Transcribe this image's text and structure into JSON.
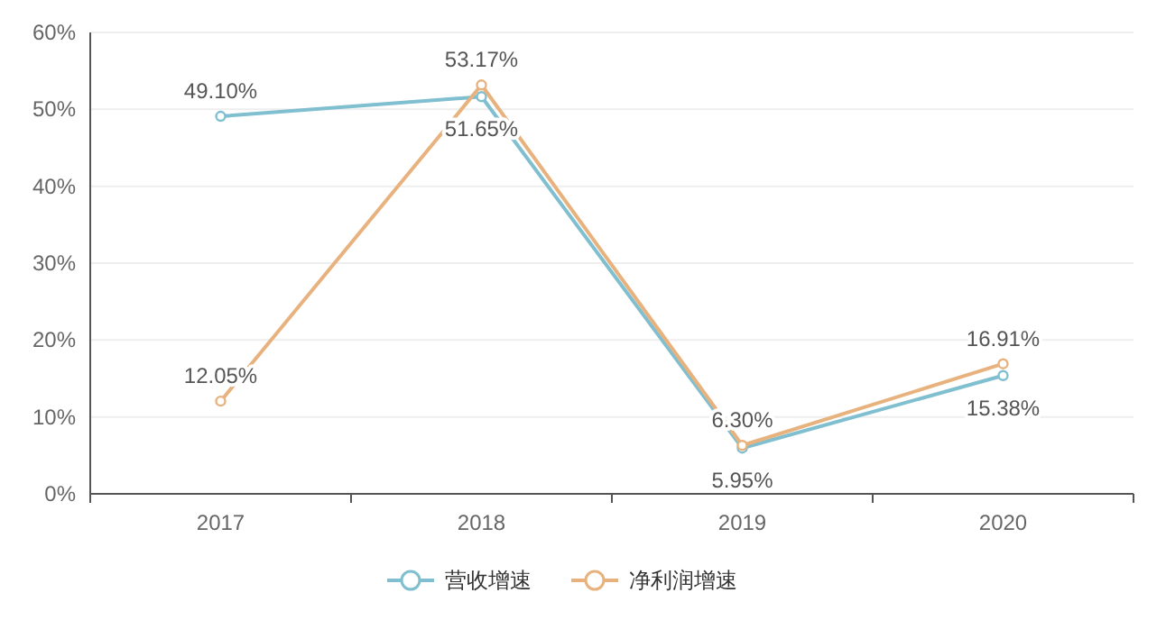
{
  "chart_data": {
    "type": "line",
    "categories": [
      "2017",
      "2018",
      "2019",
      "2020"
    ],
    "series": [
      {
        "name": "营收增速",
        "color": "#7fbfd0",
        "values": [
          49.1,
          51.65,
          5.95,
          15.38
        ],
        "value_labels": [
          "49.10%",
          "51.65%",
          "5.95%",
          "15.38%"
        ]
      },
      {
        "name": "净利润增速",
        "color": "#e8b27e",
        "values": [
          12.05,
          53.17,
          6.3,
          16.91
        ],
        "value_labels": [
          "12.05%",
          "53.17%",
          "6.30%",
          "16.91%"
        ]
      }
    ],
    "ylim": [
      0,
      60
    ],
    "yticks": [
      {
        "value": 0,
        "label": "0%"
      },
      {
        "value": 10,
        "label": "10%"
      },
      {
        "value": 20,
        "label": "20%"
      },
      {
        "value": 30,
        "label": "30%"
      },
      {
        "value": 40,
        "label": "40%"
      },
      {
        "value": 50,
        "label": "50%"
      },
      {
        "value": 60,
        "label": "60%"
      }
    ],
    "grid": "y",
    "legend": "bottom",
    "marker": "circle",
    "line_style": "solid"
  }
}
